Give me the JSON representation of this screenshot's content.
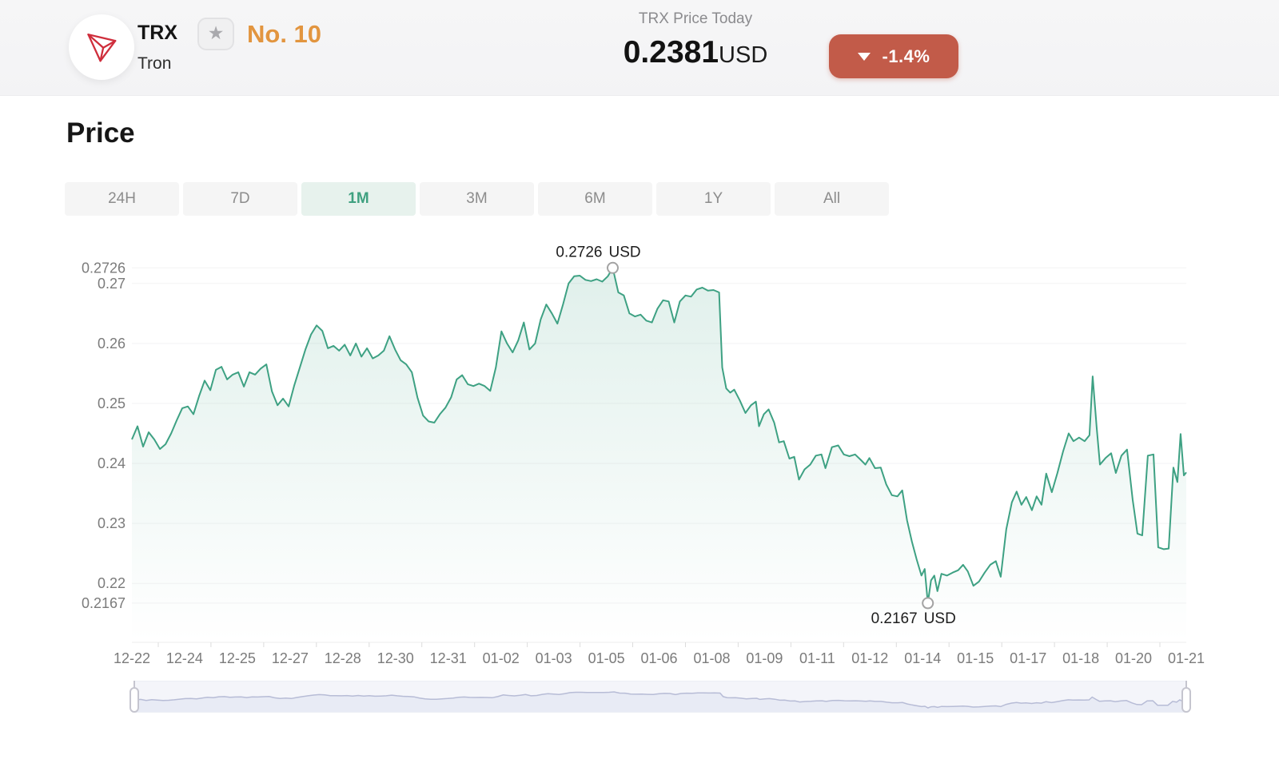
{
  "header": {
    "coin": {
      "symbol": "TRX",
      "name": "Tron",
      "rank": "No. 10",
      "rank_color": "#E2953F",
      "logo_color": "#CF2E3C"
    },
    "favorite_icon": "star",
    "price_block": {
      "label": "TRX Price Today",
      "price": "0.2381",
      "currency": "USD"
    },
    "change_badge": {
      "value": "-1.4%",
      "direction": "down",
      "background": "#C25B49",
      "text_color": "#FFFFFF"
    }
  },
  "section_title": "Price",
  "tabs": {
    "items": [
      {
        "label": "24H",
        "active": false
      },
      {
        "label": "7D",
        "active": false
      },
      {
        "label": "1M",
        "active": true
      },
      {
        "label": "3M",
        "active": false
      },
      {
        "label": "6M",
        "active": false
      },
      {
        "label": "1Y",
        "active": false
      },
      {
        "label": "All",
        "active": false
      }
    ],
    "active_bg": "#E7F2ED",
    "active_color": "#3FA180",
    "inactive_bg": "#F5F5F5",
    "inactive_color": "#8C8C8C"
  },
  "chart_data": {
    "type": "area",
    "series_name": "TRX price (1M)",
    "line_color": "#3EA183",
    "fill_top": "rgba(62,161,131,0.16)",
    "fill_bottom": "rgba(62,161,131,0.0)",
    "grid": true,
    "y_axis": {
      "labels": [
        "0.2726",
        "0.27",
        "0.26",
        "0.25",
        "0.24",
        "0.23",
        "0.22",
        "0.2167"
      ],
      "values": [
        0.2726,
        0.27,
        0.26,
        0.25,
        0.24,
        0.23,
        0.22,
        0.2167
      ],
      "range": [
        0.2103,
        0.2733
      ]
    },
    "x_axis": {
      "labels": [
        "12-22",
        "12-24",
        "12-25",
        "12-27",
        "12-28",
        "12-30",
        "12-31",
        "01-02",
        "01-03",
        "01-05",
        "01-06",
        "01-08",
        "01-09",
        "01-11",
        "01-12",
        "01-14",
        "01-15",
        "01-17",
        "01-18",
        "01-20",
        "01-21"
      ]
    },
    "max_point": {
      "t": 0.456,
      "value": 0.2726,
      "label": "0.2726 USD"
    },
    "min_point": {
      "t": 0.7549,
      "value": 0.2167,
      "label": "0.2167 USD"
    },
    "points": [
      [
        0.0,
        0.244
      ],
      [
        0.0053,
        0.2462
      ],
      [
        0.0106,
        0.2428
      ],
      [
        0.0159,
        0.2452
      ],
      [
        0.0212,
        0.244
      ],
      [
        0.0266,
        0.2424
      ],
      [
        0.0319,
        0.2432
      ],
      [
        0.0372,
        0.245
      ],
      [
        0.0425,
        0.2472
      ],
      [
        0.0478,
        0.2492
      ],
      [
        0.0531,
        0.2495
      ],
      [
        0.0584,
        0.2482
      ],
      [
        0.0637,
        0.2512
      ],
      [
        0.069,
        0.2538
      ],
      [
        0.0744,
        0.2522
      ],
      [
        0.0797,
        0.2556
      ],
      [
        0.085,
        0.2561
      ],
      [
        0.0903,
        0.254
      ],
      [
        0.0956,
        0.2548
      ],
      [
        0.1009,
        0.2552
      ],
      [
        0.1062,
        0.2528
      ],
      [
        0.1115,
        0.2552
      ],
      [
        0.1168,
        0.2548
      ],
      [
        0.1221,
        0.2558
      ],
      [
        0.1275,
        0.2565
      ],
      [
        0.1328,
        0.252
      ],
      [
        0.1381,
        0.2497
      ],
      [
        0.1434,
        0.2508
      ],
      [
        0.1487,
        0.2495
      ],
      [
        0.154,
        0.253
      ],
      [
        0.1593,
        0.256
      ],
      [
        0.1646,
        0.259
      ],
      [
        0.1699,
        0.2615
      ],
      [
        0.1752,
        0.263
      ],
      [
        0.1806,
        0.2621
      ],
      [
        0.1859,
        0.2592
      ],
      [
        0.1912,
        0.2596
      ],
      [
        0.1965,
        0.2588
      ],
      [
        0.2018,
        0.2598
      ],
      [
        0.2071,
        0.258
      ],
      [
        0.2124,
        0.26
      ],
      [
        0.2177,
        0.2578
      ],
      [
        0.223,
        0.2592
      ],
      [
        0.2284,
        0.2575
      ],
      [
        0.2337,
        0.258
      ],
      [
        0.239,
        0.2588
      ],
      [
        0.2443,
        0.2612
      ],
      [
        0.2496,
        0.259
      ],
      [
        0.2549,
        0.2572
      ],
      [
        0.2602,
        0.2565
      ],
      [
        0.2655,
        0.2552
      ],
      [
        0.2708,
        0.251
      ],
      [
        0.2761,
        0.248
      ],
      [
        0.2815,
        0.247
      ],
      [
        0.2868,
        0.2468
      ],
      [
        0.2921,
        0.2482
      ],
      [
        0.2974,
        0.2493
      ],
      [
        0.3027,
        0.251
      ],
      [
        0.308,
        0.254
      ],
      [
        0.3133,
        0.2547
      ],
      [
        0.3186,
        0.2532
      ],
      [
        0.3239,
        0.2529
      ],
      [
        0.3292,
        0.2533
      ],
      [
        0.3346,
        0.2529
      ],
      [
        0.3399,
        0.2521
      ],
      [
        0.3452,
        0.256
      ],
      [
        0.3505,
        0.262
      ],
      [
        0.3558,
        0.26
      ],
      [
        0.3611,
        0.2585
      ],
      [
        0.3664,
        0.2605
      ],
      [
        0.3717,
        0.2635
      ],
      [
        0.377,
        0.259
      ],
      [
        0.3824,
        0.26
      ],
      [
        0.3877,
        0.264
      ],
      [
        0.393,
        0.2665
      ],
      [
        0.3983,
        0.265
      ],
      [
        0.4036,
        0.2633
      ],
      [
        0.4089,
        0.2665
      ],
      [
        0.4142,
        0.27
      ],
      [
        0.4195,
        0.2712
      ],
      [
        0.4248,
        0.2713
      ],
      [
        0.4302,
        0.2706
      ],
      [
        0.4355,
        0.2704
      ],
      [
        0.4408,
        0.2707
      ],
      [
        0.4461,
        0.2703
      ],
      [
        0.4514,
        0.2712
      ],
      [
        0.456,
        0.2726
      ],
      [
        0.4613,
        0.2685
      ],
      [
        0.4666,
        0.268
      ],
      [
        0.4719,
        0.265
      ],
      [
        0.4772,
        0.2645
      ],
      [
        0.4825,
        0.2648
      ],
      [
        0.4879,
        0.2638
      ],
      [
        0.4932,
        0.2635
      ],
      [
        0.4985,
        0.2658
      ],
      [
        0.5038,
        0.2672
      ],
      [
        0.5091,
        0.267
      ],
      [
        0.5144,
        0.2635
      ],
      [
        0.5197,
        0.267
      ],
      [
        0.525,
        0.268
      ],
      [
        0.5303,
        0.2678
      ],
      [
        0.5357,
        0.269
      ],
      [
        0.541,
        0.2693
      ],
      [
        0.5463,
        0.2688
      ],
      [
        0.5516,
        0.2689
      ],
      [
        0.5569,
        0.2685
      ],
      [
        0.5599,
        0.256
      ],
      [
        0.5637,
        0.2525
      ],
      [
        0.5675,
        0.2518
      ],
      [
        0.5713,
        0.2523
      ],
      [
        0.5766,
        0.2505
      ],
      [
        0.5819,
        0.2484
      ],
      [
        0.5872,
        0.2497
      ],
      [
        0.5918,
        0.2503
      ],
      [
        0.5948,
        0.2462
      ],
      [
        0.5994,
        0.2482
      ],
      [
        0.6039,
        0.249
      ],
      [
        0.6092,
        0.2468
      ],
      [
        0.6138,
        0.2435
      ],
      [
        0.6183,
        0.2437
      ],
      [
        0.6236,
        0.2408
      ],
      [
        0.6282,
        0.2411
      ],
      [
        0.6327,
        0.2373
      ],
      [
        0.638,
        0.239
      ],
      [
        0.6434,
        0.2398
      ],
      [
        0.6487,
        0.2413
      ],
      [
        0.654,
        0.2415
      ],
      [
        0.6578,
        0.2392
      ],
      [
        0.6639,
        0.2427
      ],
      [
        0.6699,
        0.243
      ],
      [
        0.6752,
        0.2415
      ],
      [
        0.6805,
        0.2412
      ],
      [
        0.6859,
        0.2415
      ],
      [
        0.6912,
        0.2406
      ],
      [
        0.6957,
        0.2398
      ],
      [
        0.6995,
        0.2409
      ],
      [
        0.7048,
        0.2392
      ],
      [
        0.7102,
        0.2393
      ],
      [
        0.7155,
        0.2365
      ],
      [
        0.7208,
        0.2347
      ],
      [
        0.7261,
        0.2345
      ],
      [
        0.7306,
        0.2355
      ],
      [
        0.7352,
        0.2305
      ],
      [
        0.7397,
        0.227
      ],
      [
        0.7443,
        0.224
      ],
      [
        0.7488,
        0.2213
      ],
      [
        0.7519,
        0.2224
      ],
      [
        0.7549,
        0.2167
      ],
      [
        0.7579,
        0.2205
      ],
      [
        0.761,
        0.2213
      ],
      [
        0.764,
        0.2187
      ],
      [
        0.7678,
        0.2216
      ],
      [
        0.7731,
        0.2213
      ],
      [
        0.7784,
        0.2218
      ],
      [
        0.7837,
        0.2222
      ],
      [
        0.7883,
        0.2231
      ],
      [
        0.7928,
        0.222
      ],
      [
        0.7981,
        0.2196
      ],
      [
        0.8034,
        0.2203
      ],
      [
        0.8088,
        0.2218
      ],
      [
        0.8141,
        0.2231
      ],
      [
        0.8194,
        0.2237
      ],
      [
        0.824,
        0.2211
      ],
      [
        0.8293,
        0.229
      ],
      [
        0.8346,
        0.2335
      ],
      [
        0.8391,
        0.2353
      ],
      [
        0.8437,
        0.2331
      ],
      [
        0.8482,
        0.2344
      ],
      [
        0.8536,
        0.2322
      ],
      [
        0.8581,
        0.2345
      ],
      [
        0.8627,
        0.2331
      ],
      [
        0.8672,
        0.2383
      ],
      [
        0.8725,
        0.2352
      ],
      [
        0.8778,
        0.2384
      ],
      [
        0.8832,
        0.242
      ],
      [
        0.8885,
        0.245
      ],
      [
        0.893,
        0.2437
      ],
      [
        0.8983,
        0.2443
      ],
      [
        0.9036,
        0.2437
      ],
      [
        0.9082,
        0.2447
      ],
      [
        0.9112,
        0.2545
      ],
      [
        0.915,
        0.246
      ],
      [
        0.9181,
        0.2398
      ],
      [
        0.9234,
        0.2409
      ],
      [
        0.9287,
        0.2417
      ],
      [
        0.9332,
        0.2384
      ],
      [
        0.9385,
        0.2413
      ],
      [
        0.9438,
        0.2423
      ],
      [
        0.9491,
        0.234
      ],
      [
        0.9537,
        0.2283
      ],
      [
        0.9582,
        0.228
      ],
      [
        0.9635,
        0.2413
      ],
      [
        0.9689,
        0.2415
      ],
      [
        0.9734,
        0.226
      ],
      [
        0.9787,
        0.2257
      ],
      [
        0.9833,
        0.2258
      ],
      [
        0.9878,
        0.2393
      ],
      [
        0.9916,
        0.2369
      ],
      [
        0.9946,
        0.2449
      ],
      [
        0.9977,
        0.238
      ],
      [
        1.0,
        0.2385
      ]
    ],
    "navigator": {
      "line_color": "#B7BCD6",
      "fill_color": "#E8EBF5",
      "background": "#F4F5FA",
      "handle_border": "#C5C5CF"
    }
  }
}
